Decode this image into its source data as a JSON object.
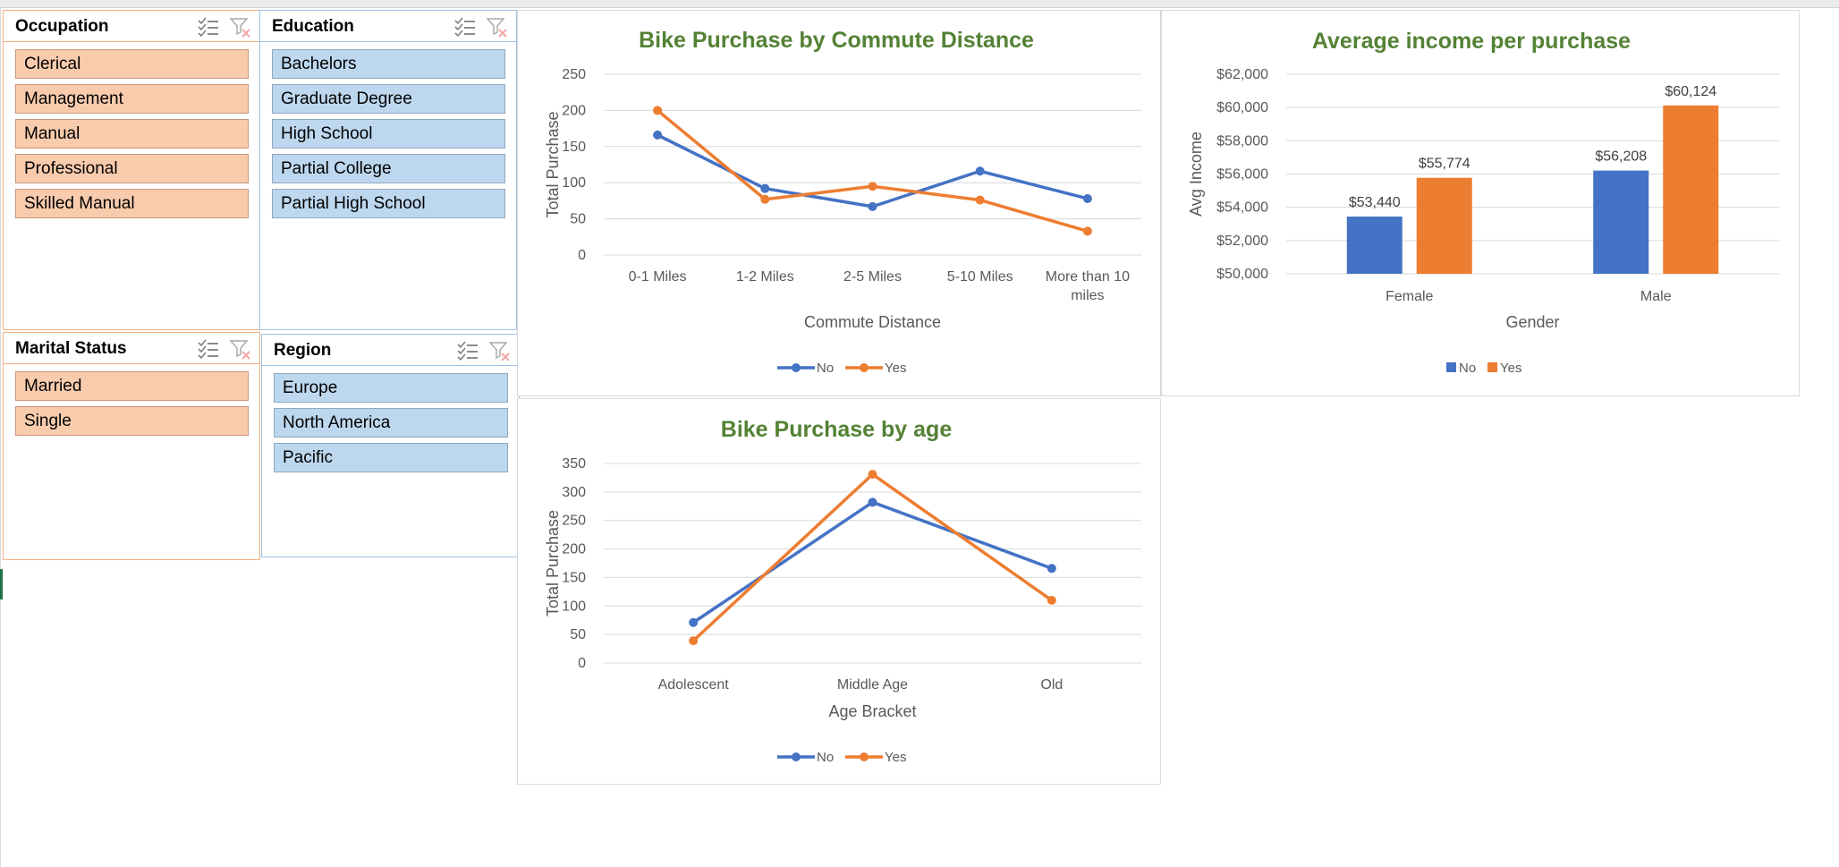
{
  "slicers": {
    "occupation": {
      "title": "Occupation",
      "items": [
        "Clerical",
        "Management",
        "Manual",
        "Professional",
        "Skilled Manual"
      ]
    },
    "education": {
      "title": "Education",
      "items": [
        "Bachelors",
        "Graduate Degree",
        "High School",
        "Partial College",
        "Partial High School"
      ]
    },
    "marital": {
      "title": "Marital Status",
      "items": [
        "Married",
        "Single"
      ]
    },
    "region": {
      "title": "Region",
      "items": [
        "Europe",
        "North America",
        "Pacific"
      ]
    }
  },
  "icons": {
    "multi_select": "multi-select-icon",
    "clear_filter": "clear-filter-icon"
  },
  "colors": {
    "no": "#4472c4",
    "yes": "#ed7d31",
    "title": "#548235",
    "slicer_orange": "#f8cbad",
    "slicer_blue": "#bdd7ee"
  },
  "chart_data": [
    {
      "id": "commute",
      "type": "line",
      "title": "Bike Purchase by Commute Distance",
      "xlabel": "Commute Distance",
      "ylabel": "Total Purchase",
      "categories": [
        "0-1 Miles",
        "1-2 Miles",
        "2-5 Miles",
        "5-10 Miles",
        "More than 10 miles"
      ],
      "ylim": [
        0,
        250
      ],
      "yticks": [
        0,
        50,
        100,
        150,
        200,
        250
      ],
      "grid": true,
      "legend": "bottom",
      "series": [
        {
          "name": "No",
          "values": [
            166,
            92,
            67,
            116,
            78
          ],
          "color": "#4472c4"
        },
        {
          "name": "Yes",
          "values": [
            200,
            77,
            95,
            76,
            33
          ],
          "color": "#ed7d31"
        }
      ]
    },
    {
      "id": "income",
      "type": "bar",
      "title": "Average income per purchase",
      "xlabel": "Gender",
      "ylabel": "Avg Income",
      "categories": [
        "Female",
        "Male"
      ],
      "ylim": [
        50000,
        62000
      ],
      "yticks": [
        "$50,000",
        "$52,000",
        "$54,000",
        "$56,000",
        "$58,000",
        "$60,000",
        "$62,000"
      ],
      "grid": true,
      "legend": "bottom",
      "series": [
        {
          "name": "No",
          "values": [
            53440,
            56208
          ],
          "labels": [
            "$53,440",
            "$56,208"
          ],
          "color": "#4472c4"
        },
        {
          "name": "Yes",
          "values": [
            55774,
            60124
          ],
          "labels": [
            "$55,774",
            "$60,124"
          ],
          "color": "#ed7d31"
        }
      ]
    },
    {
      "id": "age",
      "type": "line",
      "title": "Bike Purchase by age",
      "xlabel": "Age Bracket",
      "ylabel": "Total Purchase",
      "categories": [
        "Adolescent",
        "Middle Age",
        "Old"
      ],
      "ylim": [
        0,
        350
      ],
      "yticks": [
        0,
        50,
        100,
        150,
        200,
        250,
        300,
        350
      ],
      "grid": true,
      "legend": "bottom",
      "series": [
        {
          "name": "No",
          "values": [
            71,
            282,
            166
          ],
          "color": "#4472c4"
        },
        {
          "name": "Yes",
          "values": [
            39,
            331,
            110
          ],
          "color": "#ed7d31"
        }
      ]
    }
  ]
}
